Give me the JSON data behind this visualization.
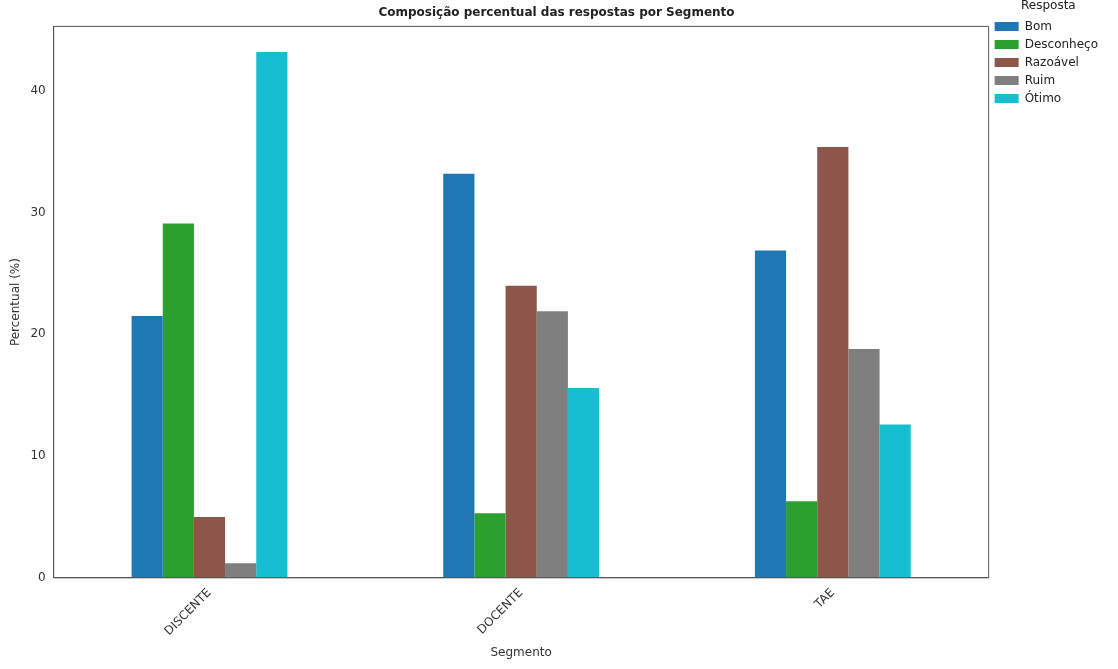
{
  "chart_data": {
    "type": "bar",
    "title": "Composição percentual das respostas por Segmento",
    "xlabel": "Segmento",
    "ylabel": "Percentual (%)",
    "legend_title": "Resposta",
    "categories": [
      "DISCENTE",
      "DOCENTE",
      "TAE"
    ],
    "series": [
      {
        "name": "Bom",
        "color": "#1f77b4",
        "values": [
          21.5,
          33.2,
          26.9
        ]
      },
      {
        "name": "Desconheço",
        "color": "#2ca02c",
        "values": [
          29.1,
          5.3,
          6.3
        ]
      },
      {
        "name": "Razoável",
        "color": "#8c564b",
        "values": [
          5.0,
          24.0,
          35.4
        ]
      },
      {
        "name": "Ruim",
        "color": "#7f7f7f",
        "values": [
          1.2,
          21.9,
          18.8
        ]
      },
      {
        "name": "Ótimo",
        "color": "#17becf",
        "values": [
          43.2,
          15.6,
          12.6
        ]
      }
    ],
    "ylim": [
      0,
      45.3
    ],
    "yticks": [
      0,
      10,
      20,
      30,
      40
    ],
    "grid": false,
    "legend": "right"
  }
}
